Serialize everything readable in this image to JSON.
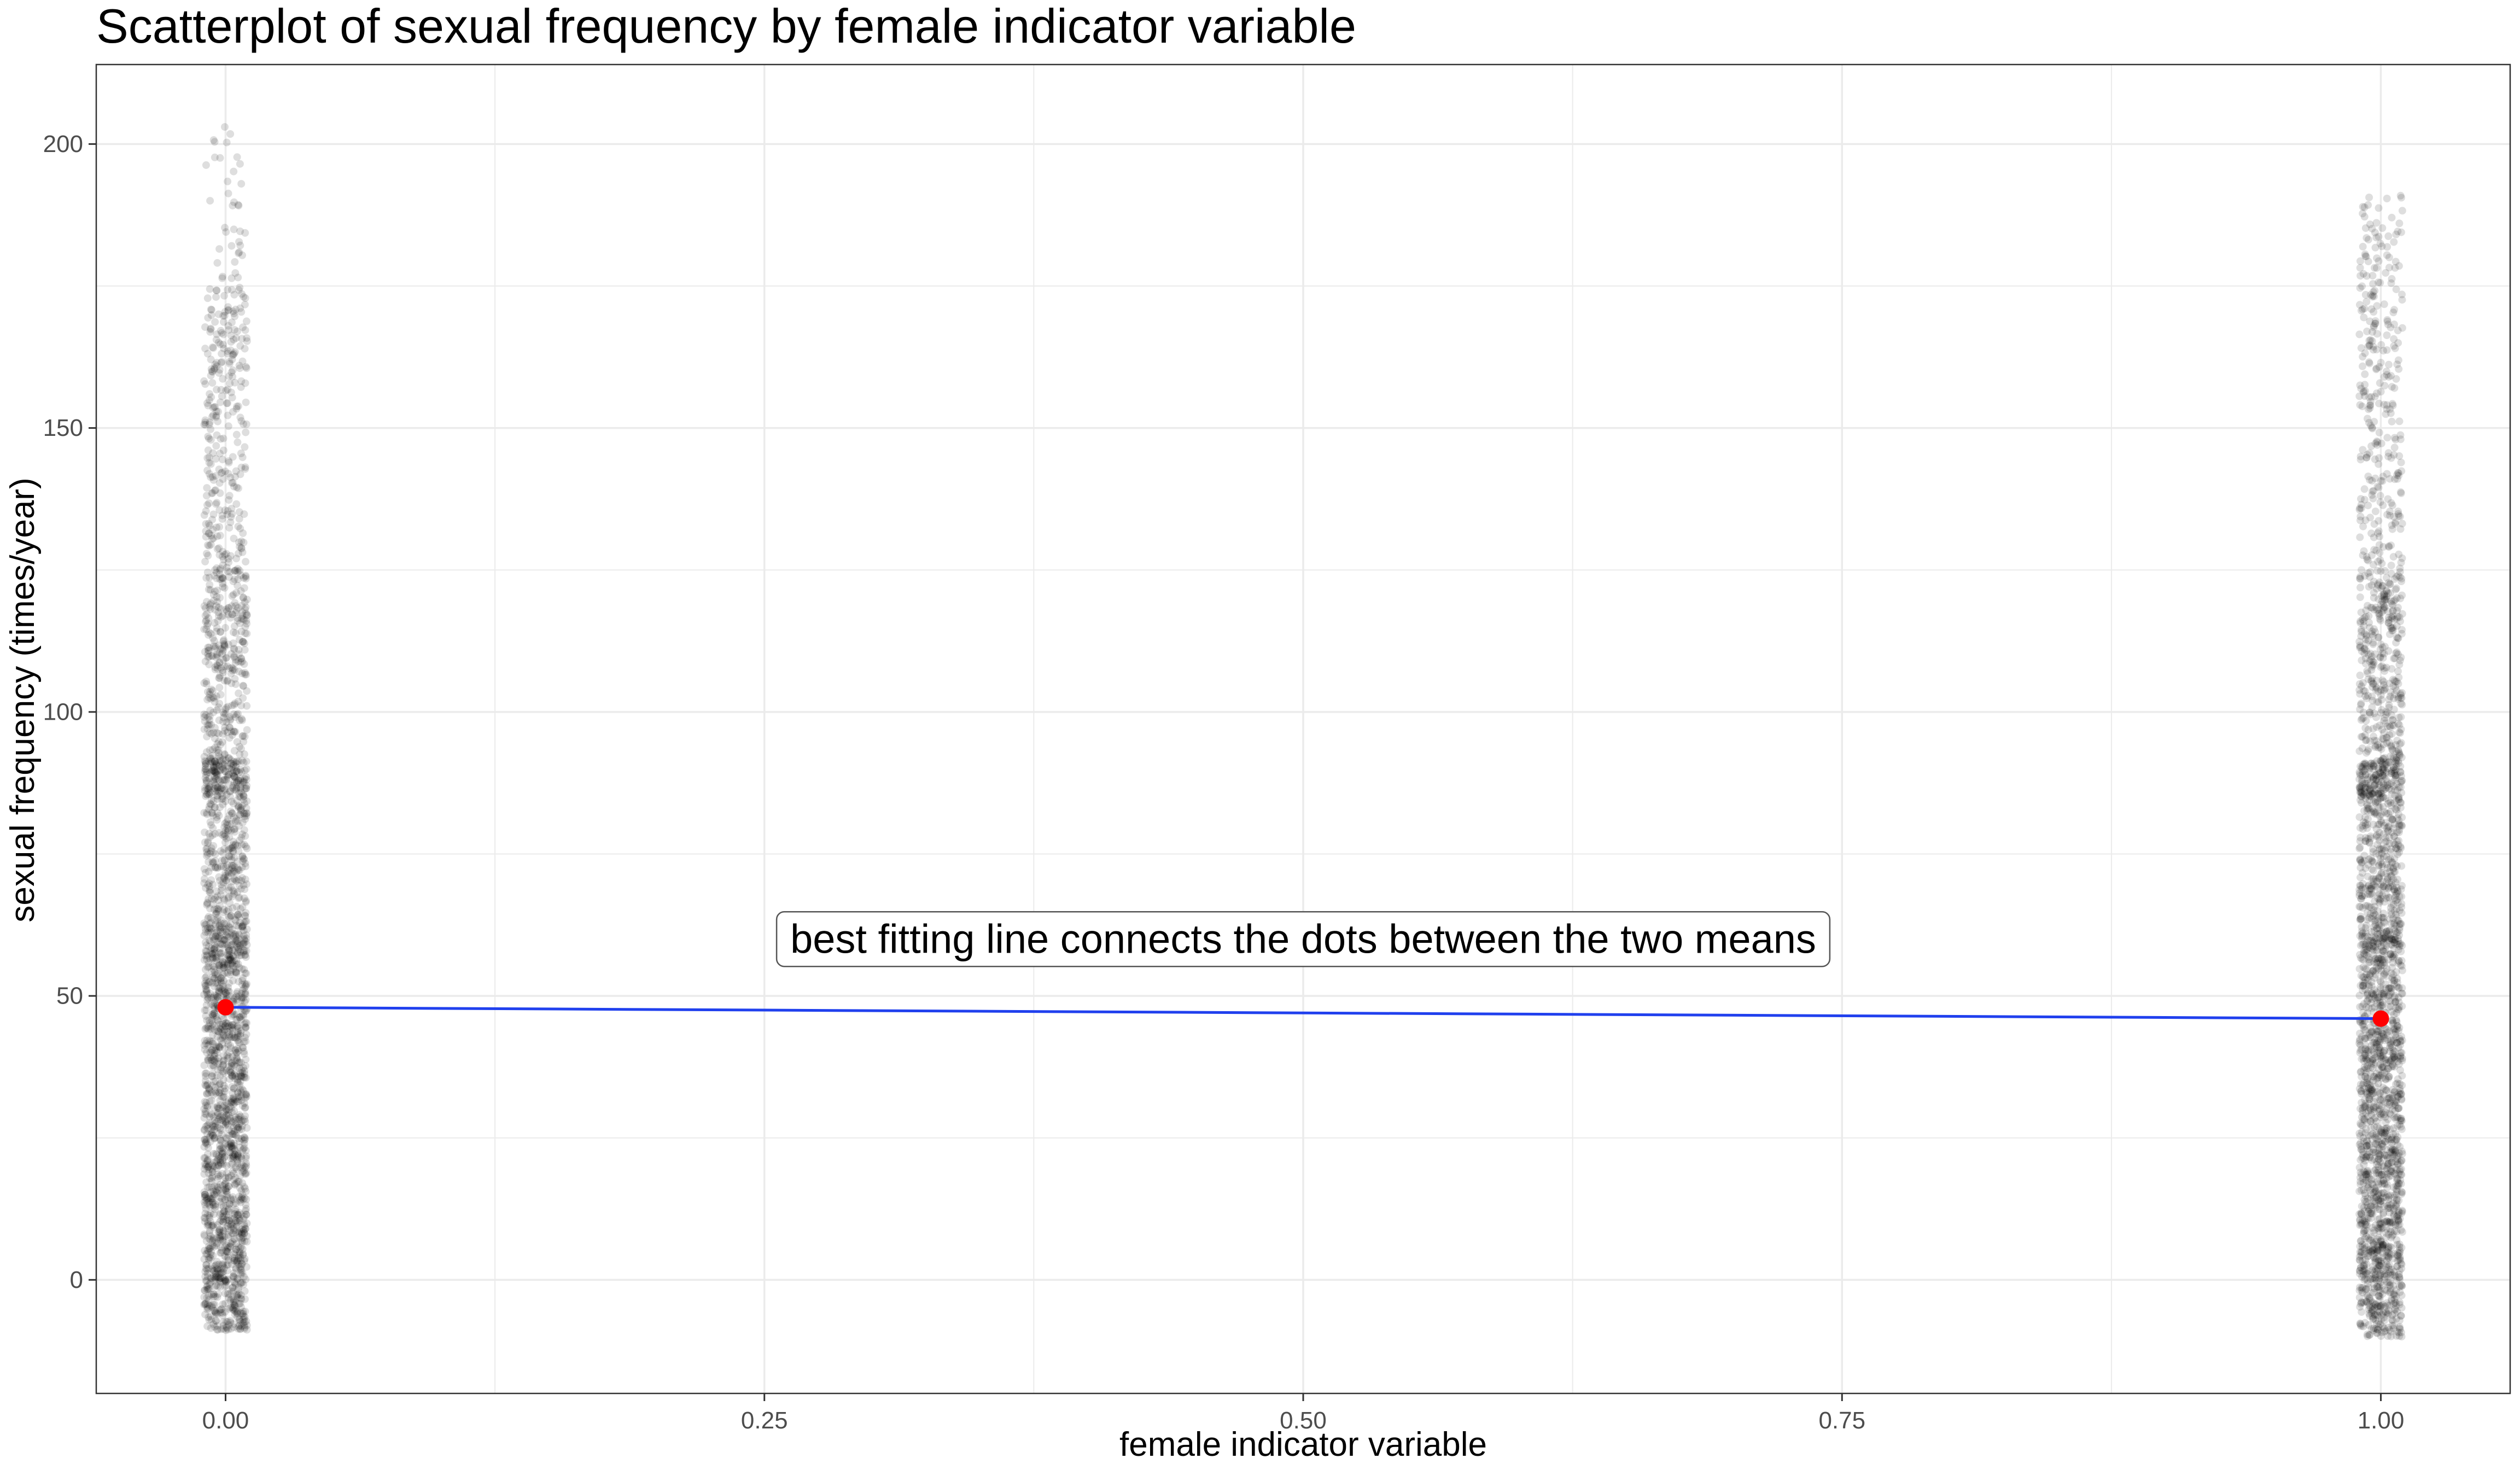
{
  "chart_data": {
    "type": "scatter",
    "title": "Scatterplot of sexual frequency by female indicator variable",
    "xlabel": "female indicator variable",
    "ylabel": "sexual frequency (times/year)",
    "xlim": [
      -0.06,
      1.06
    ],
    "ylim": [
      -20,
      214
    ],
    "x_ticks": [
      0.0,
      0.25,
      0.5,
      0.75,
      1.0
    ],
    "x_tick_labels": [
      "0.00",
      "0.25",
      "0.50",
      "0.75",
      "1.00"
    ],
    "y_ticks": [
      0,
      50,
      100,
      150,
      200
    ],
    "y_tick_labels": [
      "0",
      "50",
      "100",
      "150",
      "200"
    ],
    "grid": true,
    "series": [
      {
        "group": 0,
        "x": 0,
        "jitter_width": 0.01,
        "y_range": [
          -9,
          204
        ],
        "point_color": "#000000",
        "point_alpha": 0.13,
        "mean": 48
      },
      {
        "group": 1,
        "x": 1,
        "jitter_width": 0.01,
        "y_range": [
          -10,
          191
        ],
        "point_color": "#000000",
        "point_alpha": 0.13,
        "mean": 46
      }
    ],
    "means": [
      {
        "x": 0,
        "y": 48
      },
      {
        "x": 1,
        "y": 46
      }
    ],
    "mean_point_color": "#ff0000",
    "fit_line": {
      "x": [
        0,
        1
      ],
      "y": [
        48,
        46
      ],
      "color": "#2040ee"
    },
    "annotation": {
      "text": "best fitting line connects the dots between the two means",
      "x": 0.5,
      "y": 60
    },
    "grid_color": "#ebebeb",
    "panel_border_color": "#333333"
  }
}
